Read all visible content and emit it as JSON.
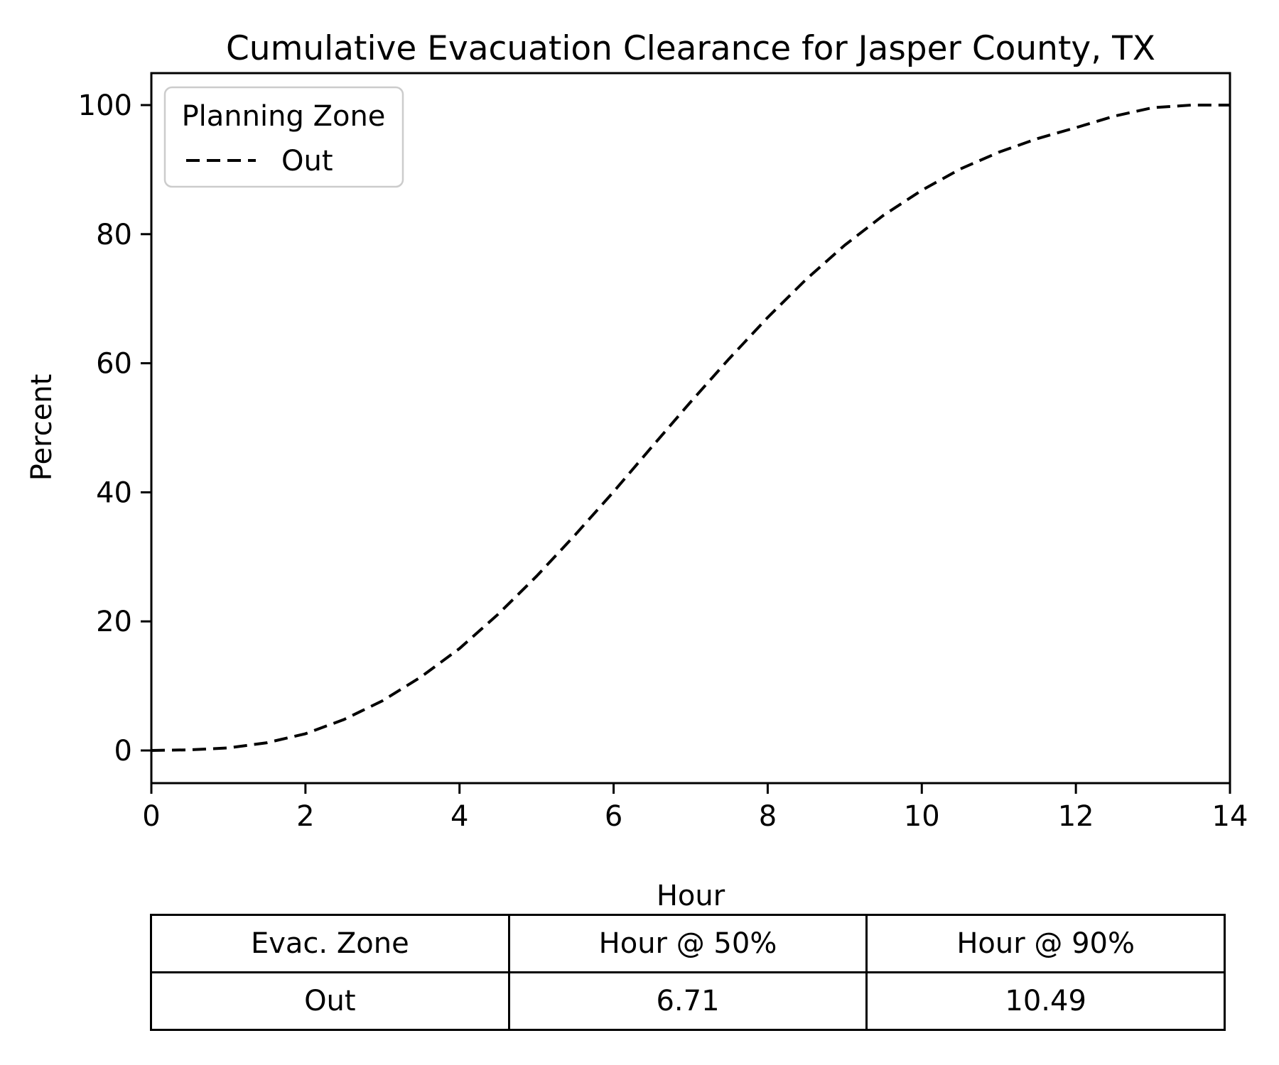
{
  "chart_data": {
    "type": "line",
    "title": "Cumulative Evacuation Clearance for Jasper County, TX",
    "xlabel": "Hour",
    "ylabel": "Percent",
    "xlim": [
      0,
      14
    ],
    "ylim": [
      0,
      100
    ],
    "x_ticks": [
      "0",
      "2",
      "4",
      "6",
      "8",
      "10",
      "12",
      "14"
    ],
    "y_ticks": [
      "0",
      "20",
      "40",
      "60",
      "80",
      "100"
    ],
    "grid": false,
    "legend": {
      "position": "upper left",
      "title": "Planning Zone",
      "entries": [
        {
          "label": "Out",
          "line_style": "dashed",
          "color": "#000000"
        }
      ]
    },
    "series": [
      {
        "name": "Out",
        "line_style": "dashed",
        "color": "#000000",
        "x": [
          0,
          0.5,
          1,
          1.5,
          2,
          2.5,
          3,
          3.5,
          4,
          4.5,
          5,
          5.5,
          6,
          6.5,
          7,
          7.5,
          8,
          8.5,
          9,
          9.5,
          10,
          10.5,
          11,
          11.5,
          12,
          12.5,
          13,
          13.5,
          14
        ],
        "values": [
          0,
          0.1,
          0.4,
          1.2,
          2.6,
          4.8,
          7.7,
          11.4,
          15.8,
          21.1,
          27.0,
          33.4,
          40.1,
          47.1,
          54.0,
          60.7,
          67.1,
          73.0,
          78.3,
          82.9,
          86.8,
          90.1,
          92.7,
          94.8,
          96.5,
          98.3,
          99.6,
          100,
          100
        ]
      }
    ]
  },
  "table": {
    "headers": [
      "Evac. Zone",
      "Hour @ 50%",
      "Hour @ 90%"
    ],
    "rows": [
      [
        "Out",
        "6.71",
        "10.49"
      ]
    ]
  },
  "colors": {
    "line": "#000000",
    "spine": "#000000",
    "legend_border": "#cccccc",
    "background": "#ffffff"
  }
}
